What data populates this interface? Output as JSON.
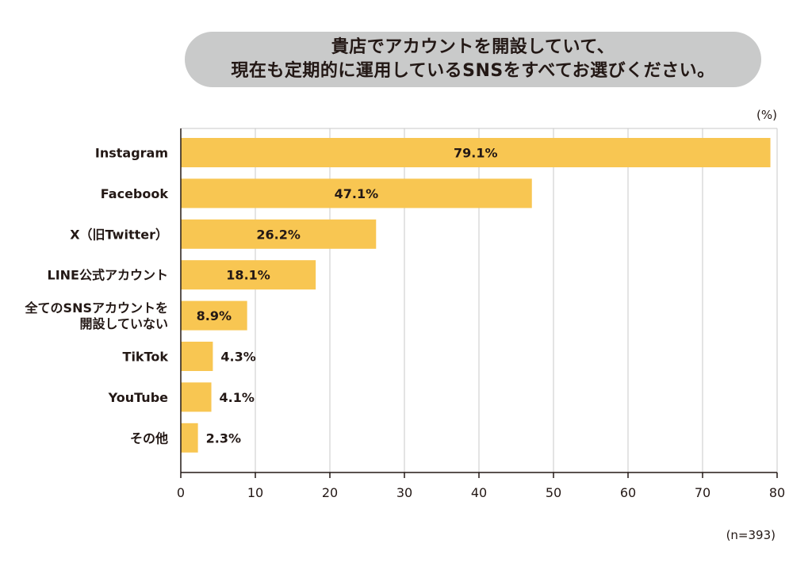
{
  "title_lines": [
    "貴店でアカウントを開設していて、",
    "現在も定期的に運用しているSNSをすべてお選びください。"
  ],
  "colors": {
    "bar": "#f8c652",
    "pill": "#c9caca",
    "grid": "#c9caca",
    "axis": "#231815",
    "text": "#231815"
  },
  "chart_data": {
    "type": "bar",
    "orientation": "horizontal",
    "title": "貴店でアカウントを開設していて、現在も定期的に運用しているSNSをすべてお選びください。",
    "unit_label": "(%)",
    "sample_label": "(n=393)",
    "categories": [
      [
        "Instagram"
      ],
      [
        "Facebook"
      ],
      [
        "X（旧Twitter）"
      ],
      [
        "LINE公式アカウント"
      ],
      [
        "全てのSNSアカウントを",
        "開設していない"
      ],
      [
        "TikTok"
      ],
      [
        "YouTube"
      ],
      [
        "その他"
      ]
    ],
    "values": [
      79.1,
      47.1,
      26.2,
      18.1,
      8.9,
      4.3,
      4.1,
      2.3
    ],
    "value_labels": [
      "79.1%",
      "47.1%",
      "26.2%",
      "18.1%",
      "8.9%",
      "4.3%",
      "4.1%",
      "2.3%"
    ],
    "xlim": [
      0,
      80
    ],
    "xticks": [
      0,
      10,
      20,
      30,
      40,
      50,
      60,
      70,
      80
    ],
    "grid": true
  }
}
